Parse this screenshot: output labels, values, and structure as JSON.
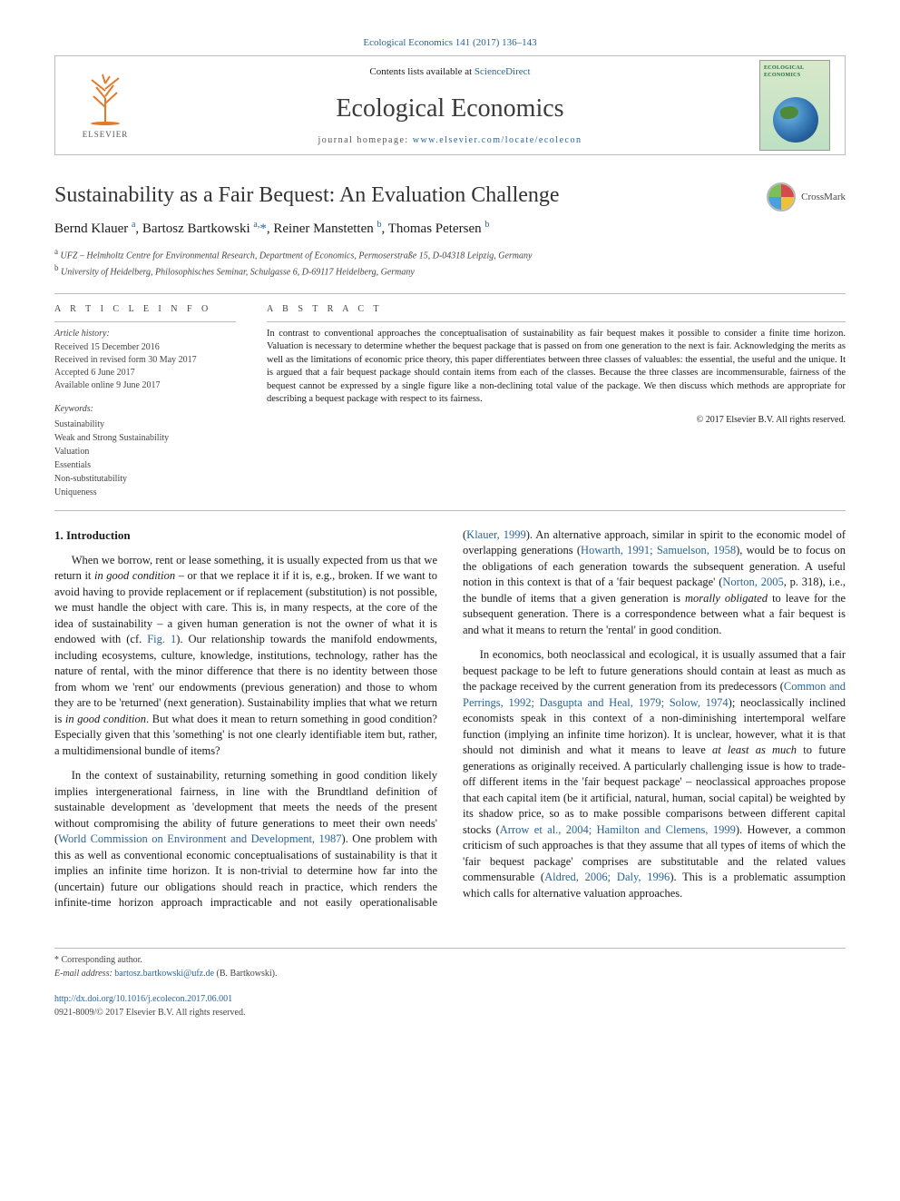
{
  "top_link": {
    "label": "Ecological Economics 141 (2017) 136–143",
    "href": "#"
  },
  "masthead": {
    "publisher_name": "ELSEVIER",
    "contents_prefix": "Contents lists available at ",
    "contents_link_text": "ScienceDirect",
    "journal_title": "Ecological Economics",
    "homepage_prefix": "journal homepage: ",
    "homepage_link_text": "www.elsevier.com/locate/ecolecon",
    "cover_title": "ECOLOGICAL ECONOMICS"
  },
  "article": {
    "title": "Sustainability as a Fair Bequest: An Evaluation Challenge",
    "crossmark_label": "CrossMark",
    "authors_html": "Bernd Klauer <sup class=\"aff-sup\">a</sup>, Bartosz Bartkowski <sup class=\"aff-sup\">a,</sup><span class=\"corr-star\">*</span>, Reiner Manstetten <sup class=\"aff-sup\">b</sup>, Thomas Petersen <sup class=\"aff-sup\">b</sup>",
    "affiliations": [
      {
        "sup": "a",
        "text": "UFZ – Helmholtz Centre for Environmental Research, Department of Economics, Permoserstraße 15, D-04318 Leipzig, Germany"
      },
      {
        "sup": "b",
        "text": "University of Heidelberg, Philosophisches Seminar, Schulgasse 6, D-69117 Heidelberg, Germany"
      }
    ]
  },
  "meta": {
    "article_info_head": "A R T I C L E   I N F O",
    "history_head": "Article history:",
    "history": [
      "Received 15 December 2016",
      "Received in revised form 30 May 2017",
      "Accepted 6 June 2017",
      "Available online 9 June 2017"
    ],
    "keywords_head": "Keywords:",
    "keywords": [
      "Sustainability",
      "Weak and Strong Sustainability",
      "Valuation",
      "Essentials",
      "Non-substitutability",
      "Uniqueness"
    ],
    "abstract_head": "A B S T R A C T",
    "abstract_text": "In contrast to conventional approaches the conceptualisation of sustainability as fair bequest makes it possible to consider a finite time horizon. Valuation is necessary to determine whether the bequest package that is passed on from one generation to the next is fair. Acknowledging the merits as well as the limitations of economic price theory, this paper differentiates between three classes of valuables: the essential, the useful and the unique. It is argued that a fair bequest package should contain items from each of the classes. Because the three classes are incommensurable, fairness of the bequest cannot be expressed by a single figure like a non-declining total value of the package. We then discuss which methods are appropriate for describing a bequest package with respect to its fairness.",
    "copyright": "© 2017 Elsevier B.V. All rights reserved."
  },
  "body": {
    "section_title": "1. Introduction",
    "paragraphs": [
      "When we borrow, rent or lease something, it is usually expected from us that we return it <i>in good condition</i> – or that we replace it if it is, e.g., broken. If we want to avoid having to provide replacement or if replacement (substitution) is not possible, we must handle the object with care. This is, in many respects, at the core of the idea of sustainability – a given human generation is not the owner of what it is endowed with (cf. <a href=\"#\" data-name=\"fig-link\" data-interactable=\"true\">Fig. 1</a>). Our relationship towards the manifold endowments, including ecosystems, culture, knowledge, institutions, technology, rather has the nature of rental, with the minor difference that there is no identity between those from whom we 'rent' our endowments (previous generation) and those to whom they are to be 'returned' (next generation). Sustainability implies that what we return is <i>in good condition</i>. But what does it mean to return something in good condition? Especially given that this 'something' is not one clearly identifiable item but, rather, a multidimensional bundle of items?",
      "In the context of sustainability, returning something in good condition likely implies intergenerational fairness, in line with the Brundtland definition of sustainable development as 'development that meets the needs of the present without compromising the ability of future generations to meet their own needs' (<a href=\"#\" data-name=\"ref-link\" data-interactable=\"true\">World Commission on Environment and Development, 1987</a>). One problem with this as well as conventional economic conceptualisations of sustainability is that it implies an infinite time horizon. It is non-trivial to determine how far into the (uncertain) future our obligations should reach in practice, which renders the infinite-time horizon approach impracticable and not easily operationalisable (<a href=\"#\" data-name=\"ref-link\" data-interactable=\"true\">Klauer, 1999</a>). An alternative approach, similar in spirit to the economic model of overlapping generations (<a href=\"#\" data-name=\"ref-link\" data-interactable=\"true\">Howarth, 1991; Samuelson, 1958</a>), would be to focus on the obligations of each generation towards the subsequent generation. A useful notion in this context is that of a 'fair bequest package' (<a href=\"#\" data-name=\"ref-link\" data-interactable=\"true\">Norton, 2005</a>, p. 318), i.e., the bundle of items that a given generation is <i>morally obligated</i> to leave for the subsequent generation. There is a correspondence between what a fair bequest is and what it means to return the 'rental' in good condition.",
      "In economics, both neoclassical and ecological, it is usually assumed that a fair bequest package to be left to future generations should contain at least as much as the package received by the current generation from its predecessors (<a href=\"#\" data-name=\"ref-link\" data-interactable=\"true\">Common and Perrings, 1992; Dasgupta and Heal, 1979; Solow, 1974</a>); neoclassically inclined economists speak in this context of a non-diminishing intertemporal welfare function (implying an infinite time horizon). It is unclear, however, what it is that should not diminish and what it means to leave <i>at least as much</i> to future generations as originally received. A particularly challenging issue is how to trade-off different items in the 'fair bequest package' – neoclassical approaches propose that each capital item (be it artificial, natural, human, social capital) be weighted by its shadow price, so as to make possible comparisons between different capital stocks (<a href=\"#\" data-name=\"ref-link\" data-interactable=\"true\">Arrow et al., 2004; Hamilton and Clemens, 1999</a>). However, a common criticism of such approaches is that they assume that all types of items of which the 'fair bequest package' comprises are substitutable and the related values commensurable (<a href=\"#\" data-name=\"ref-link\" data-interactable=\"true\">Aldred, 2006; Daly, 1996</a>). This is a problematic assumption which calls for alternative valuation approaches."
    ]
  },
  "footer": {
    "corresponding_label": "* Corresponding author.",
    "email_label": "E-mail address: ",
    "email_text": "bartosz.bartkowski@ufz.de",
    "email_person": " (B. Bartkowski).",
    "doi_text": "http://dx.doi.org/10.1016/j.ecolecon.2017.06.001",
    "issn_line": "0921-8009/© 2017 Elsevier B.V. All rights reserved."
  },
  "colors": {
    "link": "#2a6496",
    "rule": "#bbbbbb",
    "logo_orange": "#e47b2a"
  }
}
